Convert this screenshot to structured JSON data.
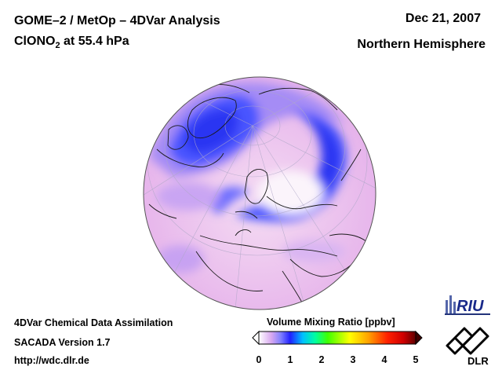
{
  "header": {
    "title_line1": "GOME–2 / MetOp – 4DVar Analysis",
    "species_main": "ClONO",
    "species_sub": "2",
    "species_rest": " at 55.4 hPa",
    "date": "Dec 21, 2007",
    "region": "Northern Hemisphere"
  },
  "footer": {
    "line1": "4DVar Chemical Data Assimilation",
    "line2": "SACADA Version 1.7",
    "line3": "http://wdc.dlr.de"
  },
  "colorbar": {
    "title": "Volume Mixing Ratio [ppbv]",
    "ticks": [
      "0",
      "1",
      "2",
      "3",
      "4",
      "5"
    ],
    "colors": [
      "#ffffff",
      "#d8a8f0",
      "#8080ff",
      "#2020ff",
      "#00c0ff",
      "#00ffa0",
      "#40ff00",
      "#ffff00",
      "#ffa000",
      "#ff2000",
      "#d00000",
      "#600000"
    ]
  },
  "logos": {
    "riu_text": "RIU",
    "dlr_text": "DLR"
  },
  "map_colors": {
    "pink_light": "#f3d8f2",
    "pink": "#e9b6ee",
    "violet": "#a58cf5",
    "blue": "#4a55ff",
    "blue_dark": "#2a35f2",
    "white_low": "#fbf4fb"
  }
}
